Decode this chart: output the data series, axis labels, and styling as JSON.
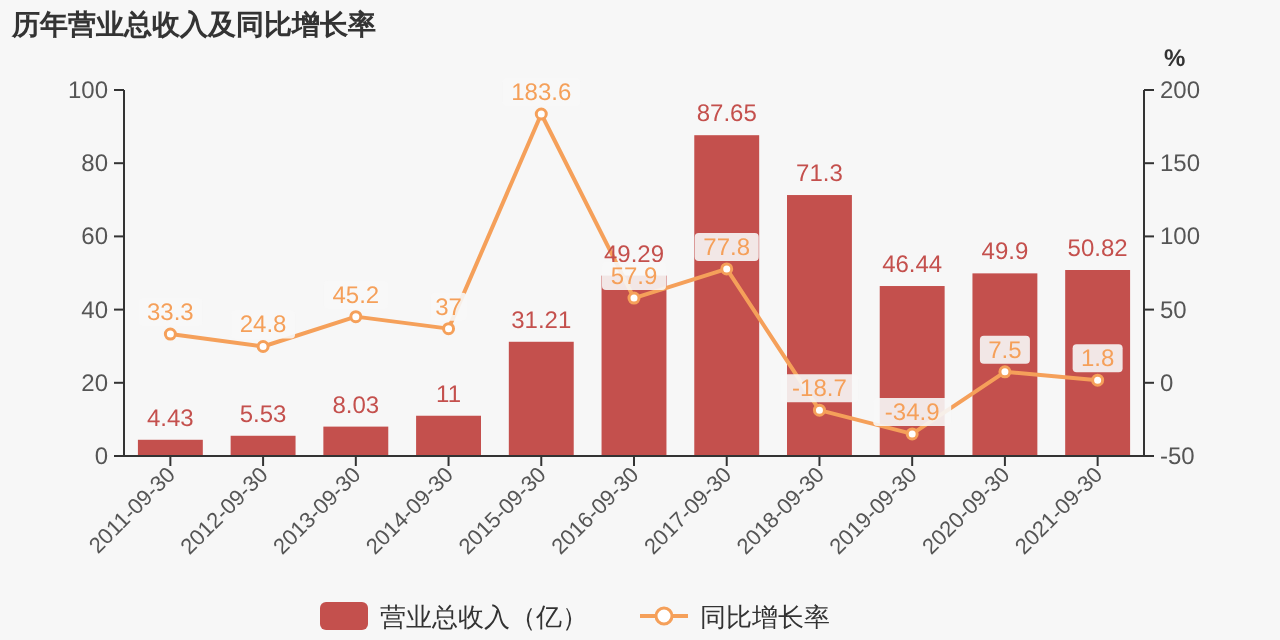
{
  "chart_data": {
    "type": "line",
    "title": "历年营业总收入及同比增长率",
    "categories": [
      "2011-09-30",
      "2012-09-30",
      "2013-09-30",
      "2014-09-30",
      "2015-09-30",
      "2016-09-30",
      "2017-09-30",
      "2018-09-30",
      "2019-09-30",
      "2020-09-30",
      "2021-09-30"
    ],
    "series": [
      {
        "name": "营业总收入（亿）",
        "type": "bar",
        "color": "#c4504d",
        "values": [
          4.43,
          5.53,
          8.03,
          11,
          31.21,
          49.29,
          87.65,
          71.3,
          46.44,
          49.9,
          50.82
        ]
      },
      {
        "name": "同比增长率",
        "axis": "y2",
        "color": "#f5a05a",
        "values": [
          33.3,
          24.8,
          45.2,
          37,
          183.6,
          57.9,
          77.8,
          -18.7,
          -34.9,
          7.5,
          1.8
        ]
      }
    ],
    "ylim": [
      0,
      100
    ],
    "yticks": [
      0,
      20,
      40,
      60,
      80,
      100
    ],
    "y2label": "%",
    "y2lim": [
      -50,
      200
    ],
    "y2ticks": [
      -50,
      0,
      50,
      100,
      150,
      200
    ],
    "data_labels": true,
    "legend": "bottom",
    "grid": false,
    "marker": "circle"
  }
}
